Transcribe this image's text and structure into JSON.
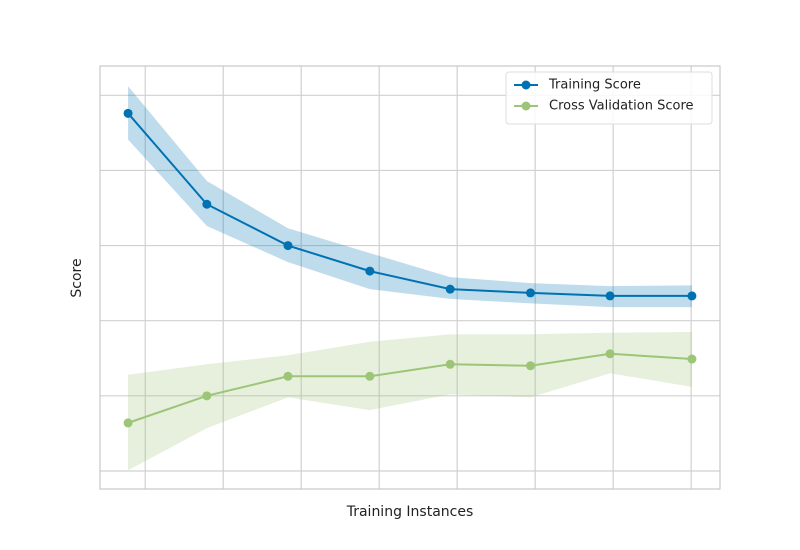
{
  "chart_data": {
    "type": "line",
    "xlabel": "Training Instances",
    "ylabel": "Score",
    "x": [
      0.78,
      1.79,
      2.83,
      3.88,
      4.91,
      5.94,
      6.96,
      8.01
    ],
    "series": [
      {
        "name": "Training Score",
        "color": "#0072b2",
        "values": [
          4.76,
          3.55,
          3.0,
          2.66,
          2.42,
          2.37,
          2.33,
          2.33
        ],
        "upper": [
          5.12,
          3.86,
          3.23,
          2.9,
          2.58,
          2.5,
          2.46,
          2.47
        ],
        "lower": [
          4.41,
          3.26,
          2.78,
          2.42,
          2.29,
          2.23,
          2.18,
          2.18
        ]
      },
      {
        "name": "Cross Validation Score",
        "color": "#9cc578",
        "values": [
          0.64,
          1.0,
          1.26,
          1.26,
          1.42,
          1.4,
          1.56,
          1.49
        ],
        "upper": [
          1.28,
          1.42,
          1.54,
          1.72,
          1.82,
          1.82,
          1.84,
          1.85
        ],
        "lower": [
          0.01,
          0.57,
          0.98,
          0.81,
          1.02,
          0.98,
          1.3,
          1.12
        ]
      }
    ],
    "xlim": [
      0.42,
      8.37
    ],
    "xticks": [
      1,
      2,
      3,
      4,
      5,
      6,
      7,
      8
    ],
    "ylim": [
      -0.24,
      5.39
    ],
    "yticks": [
      0,
      1,
      2,
      3,
      4,
      5
    ],
    "grid": true,
    "legend": "upper right"
  }
}
